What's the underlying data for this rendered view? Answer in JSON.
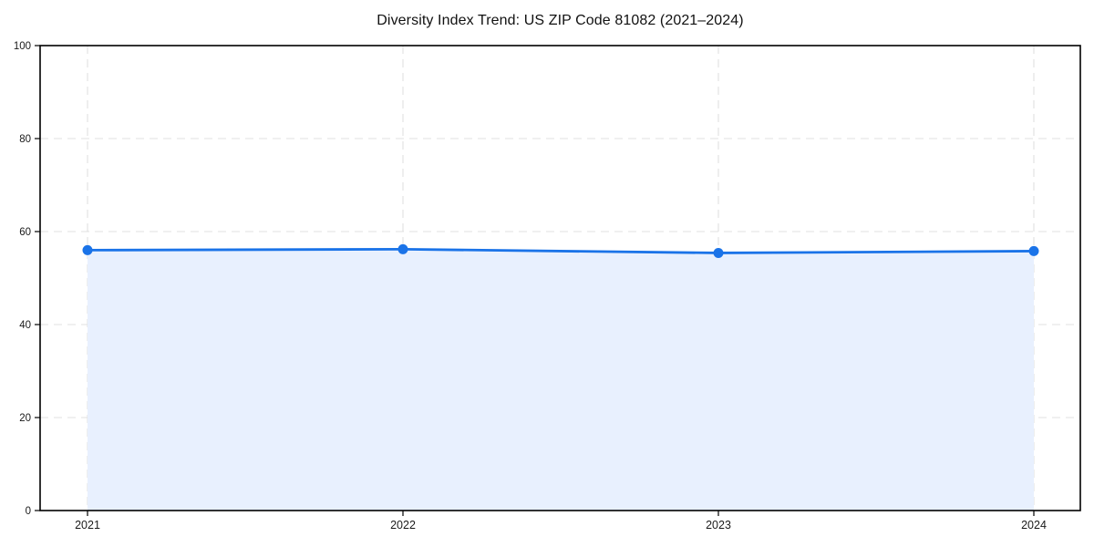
{
  "page": {
    "background": "#ffffff"
  },
  "chart_data": {
    "type": "line",
    "title": "Diversity Index Trend: US ZIP Code 81082 (2021–2024)",
    "x": [
      "2021",
      "2022",
      "2023",
      "2024"
    ],
    "series": [
      {
        "name": "Diversity Index",
        "values": [
          56.0,
          56.2,
          55.4,
          55.8
        ]
      }
    ],
    "xlabel": "",
    "ylabel": "",
    "ylim": [
      0,
      100
    ],
    "yticks": [
      0,
      20,
      40,
      60,
      80,
      100
    ],
    "ytick_labels": [
      "0",
      "20",
      "40",
      "60",
      "80",
      "100"
    ],
    "grid": true,
    "grid_style": "dashed",
    "legend_position": "none",
    "marker": "circle",
    "area_fill": true,
    "style": {
      "line_color": "#1a73e8",
      "marker_color": "#1a73e8",
      "fill_color": "#e8f0fe",
      "grid_color": "#e0e0e0",
      "axis_color": "#000000",
      "text_color": "#1a1a1a"
    }
  }
}
